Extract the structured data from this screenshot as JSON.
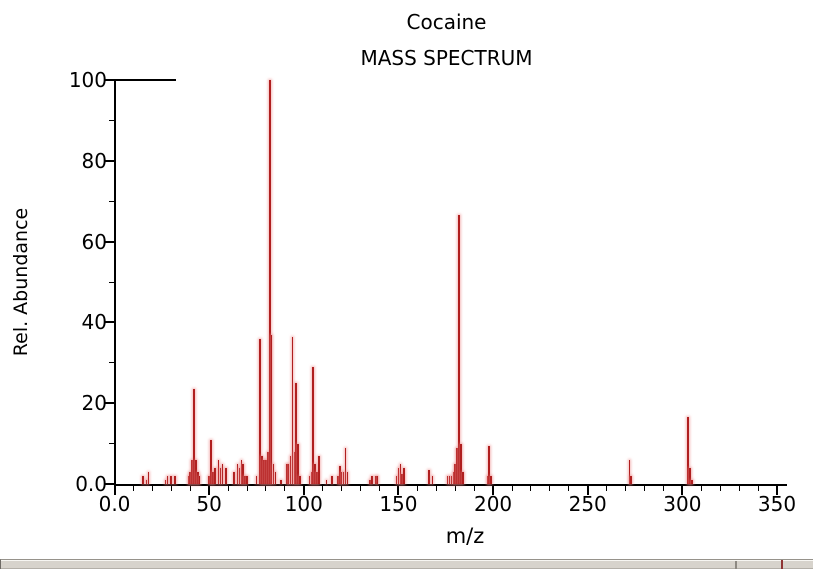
{
  "chart_data": {
    "type": "bar",
    "title": "Cocaine",
    "subtitle": "MASS SPECTRUM",
    "xlabel": "m/z",
    "ylabel": "Rel. Abundance",
    "xlim": [
      0,
      350
    ],
    "ylim": [
      0,
      100
    ],
    "grid": false,
    "legend": "none",
    "x_tick_values": [
      0,
      50,
      100,
      150,
      200,
      250,
      300,
      350
    ],
    "x_tick_labels": [
      "0.0",
      "50",
      "100",
      "150",
      "200",
      "250",
      "300",
      "350"
    ],
    "y_tick_values": [
      0,
      20,
      40,
      60,
      80,
      100
    ],
    "y_tick_labels": [
      "0.0",
      "20",
      "40",
      "60",
      "80",
      "100"
    ],
    "minor_tick_step": 10,
    "peak_color": "#b01f1f",
    "peaks": [
      [
        15,
        2
      ],
      [
        17,
        1
      ],
      [
        18,
        3
      ],
      [
        27,
        1
      ],
      [
        28,
        2
      ],
      [
        30,
        2
      ],
      [
        32,
        2
      ],
      [
        39,
        2
      ],
      [
        40,
        3
      ],
      [
        41,
        6
      ],
      [
        42,
        23.5
      ],
      [
        43,
        6
      ],
      [
        44,
        3
      ],
      [
        45,
        2
      ],
      [
        50,
        2
      ],
      [
        51,
        11
      ],
      [
        52,
        3
      ],
      [
        53,
        4
      ],
      [
        55,
        6
      ],
      [
        56,
        4
      ],
      [
        57,
        5
      ],
      [
        59,
        4
      ],
      [
        63,
        3
      ],
      [
        65,
        5
      ],
      [
        66,
        4
      ],
      [
        67,
        6
      ],
      [
        68,
        5
      ],
      [
        69,
        2
      ],
      [
        70,
        2
      ],
      [
        75,
        2
      ],
      [
        77,
        36
      ],
      [
        78,
        7
      ],
      [
        79,
        6
      ],
      [
        80,
        6
      ],
      [
        81,
        8
      ],
      [
        82,
        100
      ],
      [
        83,
        37
      ],
      [
        84,
        5
      ],
      [
        85,
        3
      ],
      [
        88,
        1
      ],
      [
        91,
        5
      ],
      [
        92,
        5
      ],
      [
        93,
        7
      ],
      [
        94,
        36.5
      ],
      [
        95,
        8
      ],
      [
        96,
        25
      ],
      [
        97,
        10
      ],
      [
        98,
        2
      ],
      [
        103,
        2
      ],
      [
        104,
        3
      ],
      [
        105,
        29
      ],
      [
        106,
        5
      ],
      [
        107,
        3
      ],
      [
        108,
        7
      ],
      [
        112,
        1
      ],
      [
        115,
        2
      ],
      [
        118,
        2
      ],
      [
        119,
        4.5
      ],
      [
        120,
        3
      ],
      [
        121,
        3
      ],
      [
        122,
        9
      ],
      [
        123,
        3
      ],
      [
        135,
        1
      ],
      [
        136,
        2
      ],
      [
        138,
        2
      ],
      [
        139,
        2
      ],
      [
        149,
        2
      ],
      [
        150,
        4
      ],
      [
        151,
        5
      ],
      [
        152,
        2.5
      ],
      [
        153,
        4
      ],
      [
        166,
        3.5
      ],
      [
        168,
        2
      ],
      [
        176,
        2
      ],
      [
        177,
        2
      ],
      [
        178,
        2
      ],
      [
        179,
        3
      ],
      [
        180,
        5
      ],
      [
        181,
        9
      ],
      [
        182,
        66.5
      ],
      [
        183,
        10
      ],
      [
        184,
        3
      ],
      [
        197,
        2
      ],
      [
        198,
        9.5
      ],
      [
        199,
        2
      ],
      [
        272,
        6
      ],
      [
        273,
        2
      ],
      [
        303,
        16.5
      ],
      [
        304,
        4
      ],
      [
        305,
        1
      ]
    ]
  },
  "statusbar": {
    "kind": "horizontal-scrollbar",
    "trough_color": "#d7d3cc",
    "border_color": "#96928b",
    "divider_color": "#8d8982",
    "marker_color": "#8f3434"
  }
}
